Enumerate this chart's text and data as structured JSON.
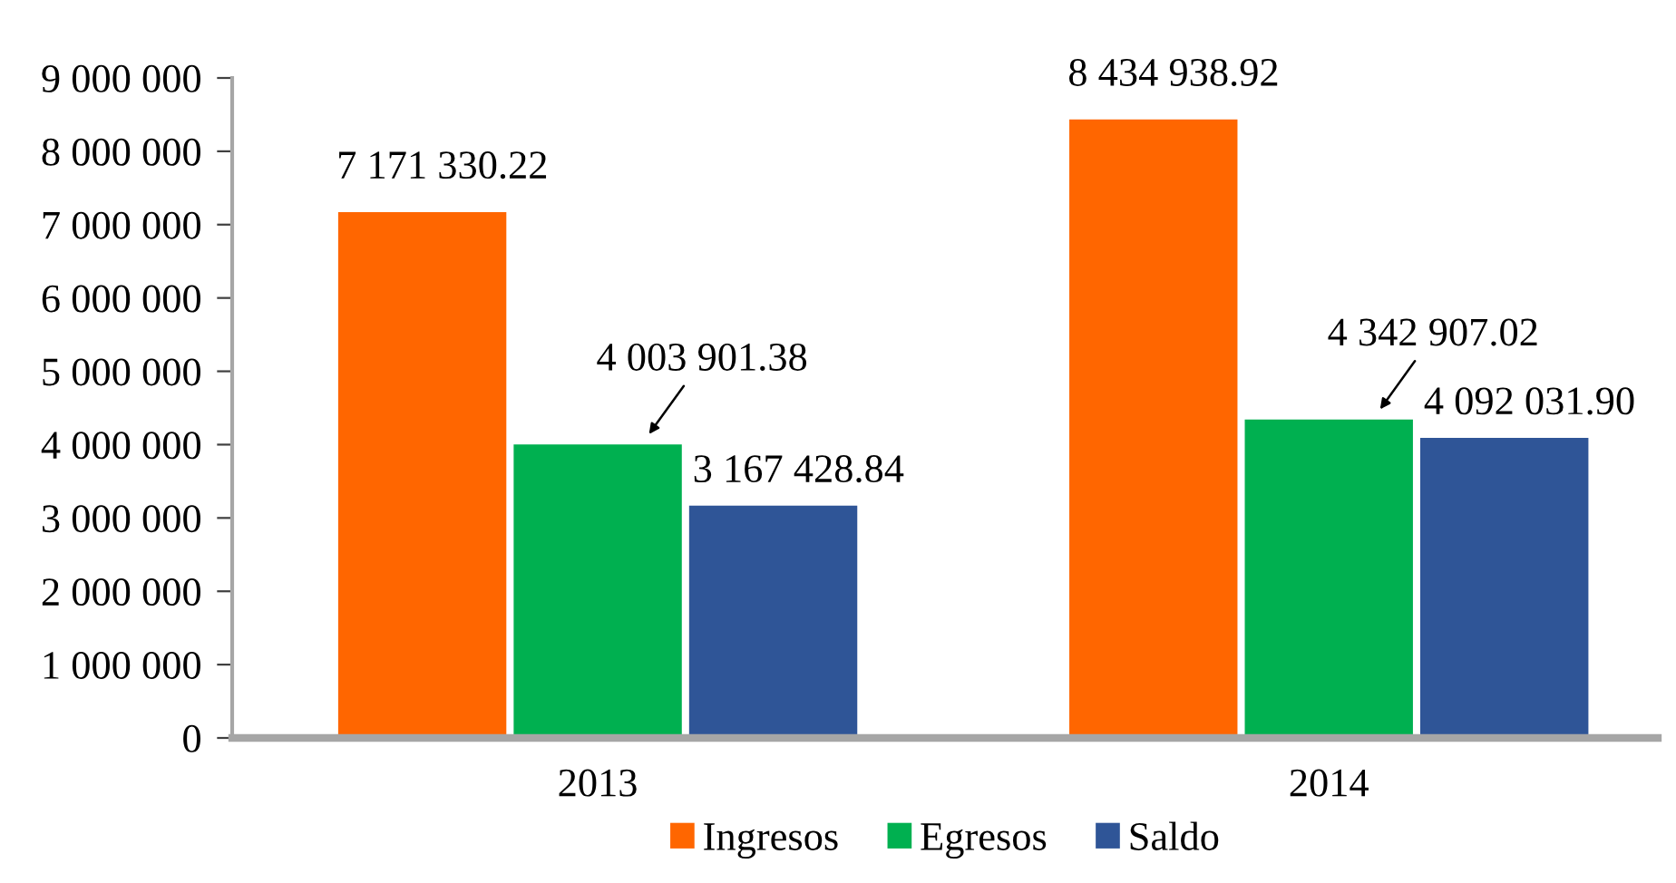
{
  "chart_data": {
    "type": "bar",
    "categories": [
      "2013",
      "2014"
    ],
    "series": [
      {
        "name": "Ingresos",
        "color": "#ff6600",
        "values": [
          7171330.22,
          8434938.92
        ],
        "value_labels": [
          "7 171 330.22",
          "8 434 938.92"
        ]
      },
      {
        "name": "Egresos",
        "color": "#00b050",
        "values": [
          4003901.38,
          4342907.02
        ],
        "value_labels": [
          "4 003 901.38",
          "4 342 907.02"
        ]
      },
      {
        "name": "Saldo",
        "color": "#2f5597",
        "values": [
          3167428.84,
          4092031.9
        ],
        "value_labels": [
          "3 167 428.84",
          "4 092 031.90"
        ]
      }
    ],
    "ylim": [
      0,
      9000000
    ],
    "yticks": [
      0,
      {
        "value": 1000000,
        "label": "1 000 000"
      },
      {
        "value": 2000000,
        "label": "2 000 000"
      },
      {
        "value": 3000000,
        "label": "3 000 000"
      },
      {
        "value": 4000000,
        "label": "4 000 000"
      },
      {
        "value": 5000000,
        "label": "5 000 000"
      },
      {
        "value": 6000000,
        "label": "6 000 000"
      },
      {
        "value": 7000000,
        "label": "7 000 000"
      },
      {
        "value": 8000000,
        "label": "8 000 000"
      },
      {
        "value": 9000000,
        "label": "9 000 000"
      }
    ],
    "grid": false,
    "legend": "bottom"
  }
}
